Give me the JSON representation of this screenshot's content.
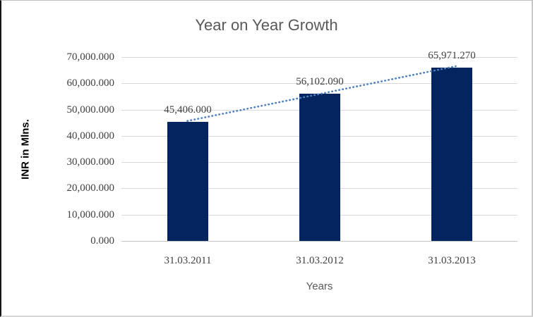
{
  "chart_data": {
    "type": "bar",
    "title": "Year on Year Growth",
    "xlabel": "Years",
    "ylabel": "INR in Mlns.",
    "categories": [
      "31.03.2011",
      "31.03.2012",
      "31.03.2013"
    ],
    "values": [
      45406.0,
      56102.09,
      65971.27
    ],
    "data_labels": [
      "45,406.000",
      "56,102.090",
      "65,971.270"
    ],
    "ylim": [
      0,
      70000
    ],
    "ytick_values": [
      0,
      10000,
      20000,
      30000,
      40000,
      50000,
      60000,
      70000
    ],
    "ytick_labels": [
      "0.000",
      "10,000.000",
      "20,000.000",
      "30,000.000",
      "40,000.000",
      "50,000.000",
      "60,000.000",
      "70,000.000"
    ],
    "grid": "horizontal",
    "legend": "none",
    "bar_color": "#03245F",
    "trendline": {
      "type": "linear",
      "style": "dotted",
      "color": "#4F81BD"
    }
  },
  "colors": {
    "title": "#595959",
    "axis_title": "#000000",
    "xlabel": "#595959",
    "tick": "#404040",
    "data_label": "#404040",
    "grid": "#D9D9D9",
    "baseline": "#C3C3C3"
  }
}
